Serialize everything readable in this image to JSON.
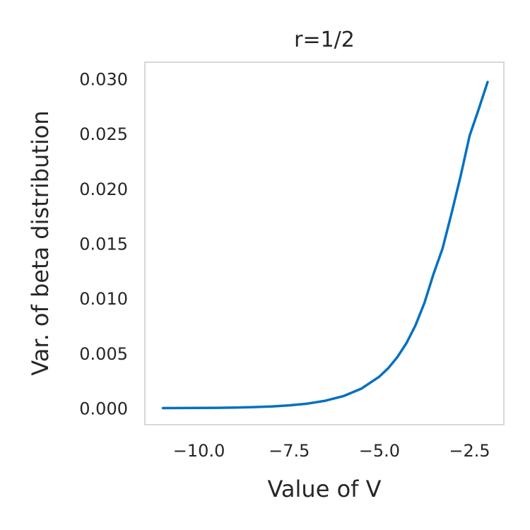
{
  "chart_data": {
    "type": "line",
    "title": "r=1/2",
    "xlabel": "Value of V",
    "ylabel": "Var. of beta distribution",
    "xlim": [
      -11.5,
      -1.55
    ],
    "ylim": [
      -0.0015,
      0.0315
    ],
    "xticks": [
      -10.0,
      -7.5,
      -5.0,
      -2.5
    ],
    "xtick_labels": [
      "−10.0",
      "−7.5",
      "−5.0",
      "−2.5"
    ],
    "yticks": [
      0.0,
      0.005,
      0.01,
      0.015,
      0.02,
      0.025,
      0.03
    ],
    "ytick_labels": [
      "0.000",
      "0.005",
      "0.010",
      "0.015",
      "0.020",
      "0.025",
      "0.030"
    ],
    "grid": false,
    "series": [
      {
        "color": "#0570c0",
        "x": [
          -11.0,
          -10.5,
          -10.0,
          -9.5,
          -9.0,
          -8.5,
          -8.0,
          -7.5,
          -7.0,
          -6.5,
          -6.0,
          -5.5,
          -5.0,
          -4.75,
          -4.5,
          -4.25,
          -4.0,
          -3.75,
          -3.5,
          -3.25,
          -3.0,
          -2.75,
          -2.5,
          -2.25,
          -2.0
        ],
        "y": [
          1e-05,
          2e-05,
          3e-05,
          4e-05,
          6e-05,
          0.0001,
          0.00016,
          0.00026,
          0.00042,
          0.00068,
          0.0011,
          0.00178,
          0.00288,
          0.00366,
          0.00466,
          0.00593,
          0.00754,
          0.0096,
          0.01221,
          0.01453,
          0.01775,
          0.0211,
          0.0248,
          0.0272,
          0.0297
        ]
      }
    ]
  }
}
